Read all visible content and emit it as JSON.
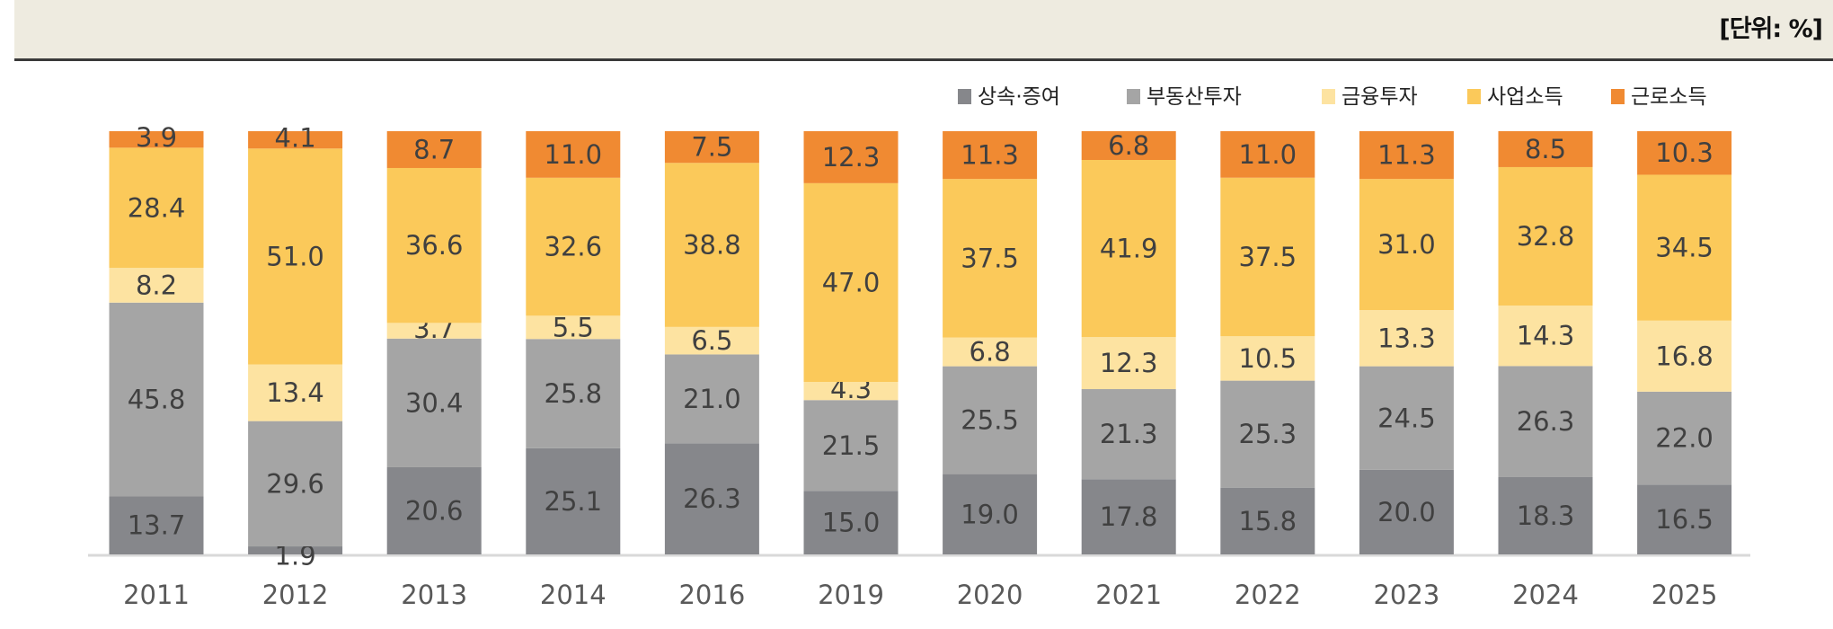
{
  "unit_label": "[단위: %]",
  "chart_data": {
    "type": "bar",
    "stacked": true,
    "normalized_100": true,
    "title": "",
    "xlabel": "",
    "ylabel": "",
    "ylim": [
      0,
      100
    ],
    "grid": false,
    "legend_position": "top-right",
    "categories": [
      "2011",
      "2012",
      "2013",
      "2014",
      "2016",
      "2019",
      "2020",
      "2021",
      "2022",
      "2023",
      "2024",
      "2025"
    ],
    "series": [
      {
        "name": "상속·증여",
        "color": "#86878B",
        "values": [
          13.7,
          1.9,
          20.6,
          25.1,
          26.3,
          15.0,
          19.0,
          17.8,
          15.8,
          20.0,
          18.3,
          16.5
        ]
      },
      {
        "name": "부동산투자",
        "color": "#A5A5A5",
        "values": [
          45.8,
          29.6,
          30.4,
          25.8,
          21.0,
          21.5,
          25.5,
          21.3,
          25.3,
          24.5,
          26.3,
          22.0
        ]
      },
      {
        "name": "금융투자",
        "color": "#FDE3A1",
        "values": [
          8.2,
          13.4,
          3.7,
          5.5,
          6.5,
          4.3,
          6.8,
          12.3,
          10.5,
          13.3,
          14.3,
          16.8
        ]
      },
      {
        "name": "사업소득",
        "color": "#FBC95A",
        "values": [
          28.4,
          51.0,
          36.6,
          32.6,
          38.8,
          47.0,
          37.5,
          41.9,
          37.5,
          31.0,
          32.8,
          34.5
        ]
      },
      {
        "name": "근로소득",
        "color": "#F08A32",
        "values": [
          3.9,
          4.1,
          8.7,
          11.0,
          7.5,
          12.3,
          11.3,
          6.8,
          11.0,
          11.3,
          8.5,
          10.3
        ]
      }
    ]
  }
}
